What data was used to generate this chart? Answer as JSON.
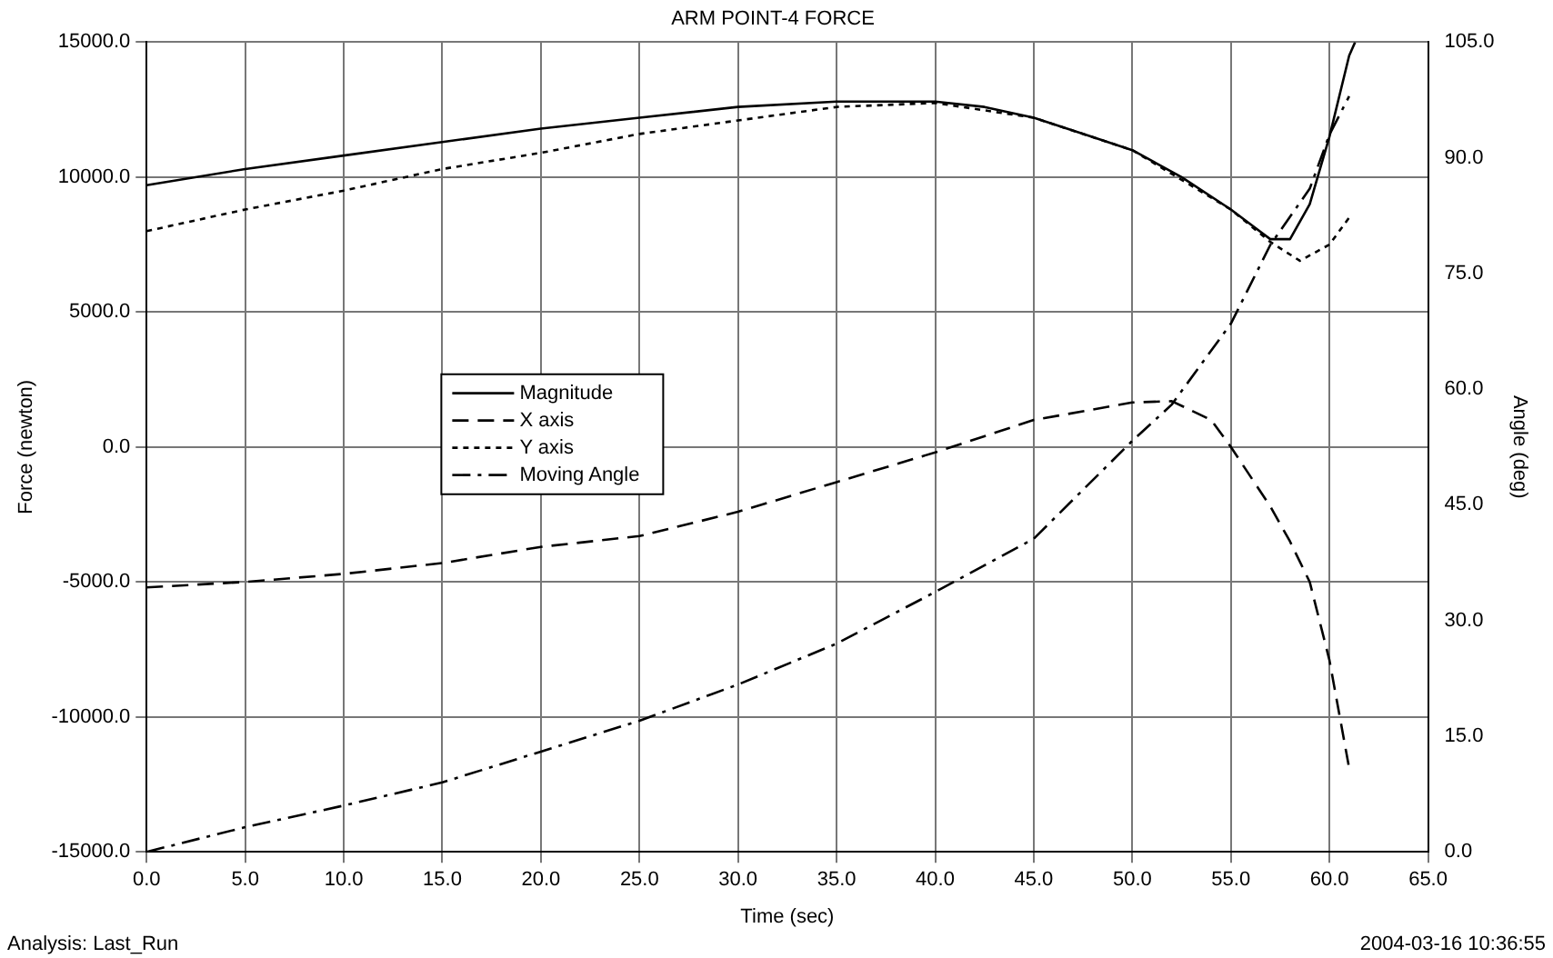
{
  "chart_data": {
    "type": "line",
    "title": "ARM POINT-4 FORCE",
    "xlabel": "Time (sec)",
    "ylabel": "Force (newton)",
    "y2label": "Angle (deg)",
    "annotations": [
      "Analysis: Last_Run",
      "2004-03-16 10:36:55"
    ],
    "xlim": [
      0,
      65
    ],
    "xticks": [
      {
        "value": 0,
        "label": "0.0"
      },
      {
        "value": 5,
        "label": "5.0"
      },
      {
        "value": 10,
        "label": "10.0"
      },
      {
        "value": 15,
        "label": "15.0"
      },
      {
        "value": 20,
        "label": "20.0"
      },
      {
        "value": 25,
        "label": "25.0"
      },
      {
        "value": 30,
        "label": "30.0"
      },
      {
        "value": 35,
        "label": "35.0"
      },
      {
        "value": 40,
        "label": "40.0"
      },
      {
        "value": 45,
        "label": "45.0"
      },
      {
        "value": 50,
        "label": "50.0"
      },
      {
        "value": 55,
        "label": "55.0"
      },
      {
        "value": 60,
        "label": "60.0"
      },
      {
        "value": 65,
        "label": "65.0"
      }
    ],
    "ylim": [
      -15000,
      15000
    ],
    "yticks": [
      {
        "value": -15000,
        "label": "-15000.0"
      },
      {
        "value": -10000,
        "label": "-10000.0"
      },
      {
        "value": -5000,
        "label": "-5000.0"
      },
      {
        "value": 0,
        "label": "0.0"
      },
      {
        "value": 5000,
        "label": "5000.0"
      },
      {
        "value": 10000,
        "label": "10000.0"
      },
      {
        "value": 15000,
        "label": "15000.0"
      }
    ],
    "y2lim": [
      0,
      105
    ],
    "y2ticks": [
      {
        "value": 0,
        "label": "0.0"
      },
      {
        "value": 15,
        "label": "15.0"
      },
      {
        "value": 30,
        "label": "30.0"
      },
      {
        "value": 45,
        "label": "45.0"
      },
      {
        "value": 60,
        "label": "60.0"
      },
      {
        "value": 75,
        "label": "75.0"
      },
      {
        "value": 90,
        "label": "90.0"
      },
      {
        "value": 105,
        "label": "105.0"
      }
    ],
    "grid": true,
    "legend": "center left",
    "marker": "none",
    "series": [
      {
        "name": "Magnitude",
        "color": "#000000",
        "line_style": "solid",
        "x": [
          0,
          5,
          10,
          15,
          20,
          25,
          30,
          35,
          40,
          42.5,
          45,
          47.5,
          50,
          52.5,
          55,
          57,
          58,
          59,
          60,
          61,
          61.3
        ],
        "values": [
          9700,
          10300,
          10800,
          11300,
          11800,
          12200,
          12600,
          12800,
          12800,
          12600,
          12200,
          11600,
          11000,
          10000,
          8800,
          7700,
          7700,
          9000,
          11500,
          14500,
          15000
        ]
      },
      {
        "name": "X axis",
        "color": "#000000",
        "line_style": "dashed",
        "x": [
          0,
          5,
          10,
          15,
          20,
          25,
          30,
          35,
          40,
          45,
          50,
          52,
          54,
          55,
          57,
          58,
          59,
          60,
          61
        ],
        "values": [
          -5200,
          -5000,
          -4700,
          -4300,
          -3700,
          -3300,
          -2400,
          -1300,
          -200,
          1000,
          1650,
          1700,
          1000,
          0,
          -2200,
          -3500,
          -5000,
          -7900,
          -11900
        ]
      },
      {
        "name": "Y axis",
        "color": "#000000",
        "line_style": "dotted",
        "x": [
          0,
          5,
          10,
          15,
          20,
          25,
          30,
          35,
          40,
          45,
          50,
          55,
          57,
          58.5,
          60,
          61
        ],
        "values": [
          8000,
          8800,
          9500,
          10300,
          10900,
          11600,
          12100,
          12600,
          12750,
          12200,
          11000,
          8800,
          7600,
          6900,
          7500,
          8500
        ]
      },
      {
        "name": "Moving Angle",
        "color": "#000000",
        "line_style": "dashdot",
        "axis": "y2",
        "x": [
          0,
          5,
          10,
          15,
          20,
          25,
          30,
          35,
          40,
          45,
          50,
          52,
          55,
          57,
          59,
          60,
          61
        ],
        "values": [
          0,
          3.2,
          6,
          9,
          13,
          17,
          21.7,
          27,
          33.7,
          40.6,
          53.3,
          58,
          68.5,
          78.7,
          86,
          93,
          98
        ]
      }
    ]
  }
}
